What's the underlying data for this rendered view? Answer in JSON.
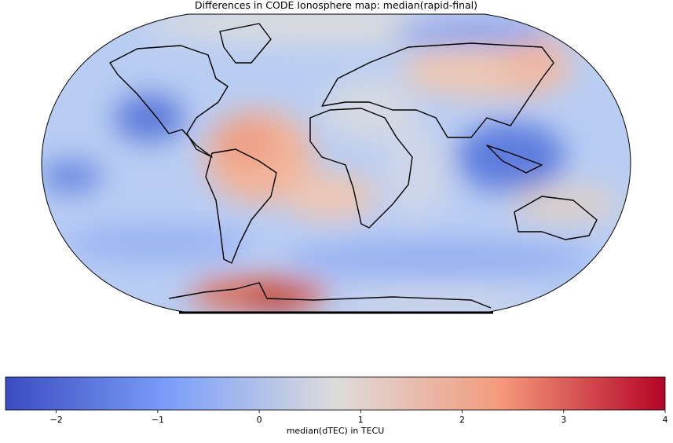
{
  "title": "Differences in CODE Ionosphere map: median(rapid-final)",
  "colorbar": {
    "label": "median(dTEC) in TECU",
    "lim": [
      -2.5,
      4
    ],
    "ticks": [
      {
        "value": -2,
        "label": "−2"
      },
      {
        "value": -1,
        "label": "−1"
      },
      0,
      1,
      2,
      3,
      4
    ],
    "colors": [
      "#3b4cc0",
      "#7b9ff9",
      "#dddcdc",
      "#f49a7b",
      "#b40426"
    ]
  }
}
